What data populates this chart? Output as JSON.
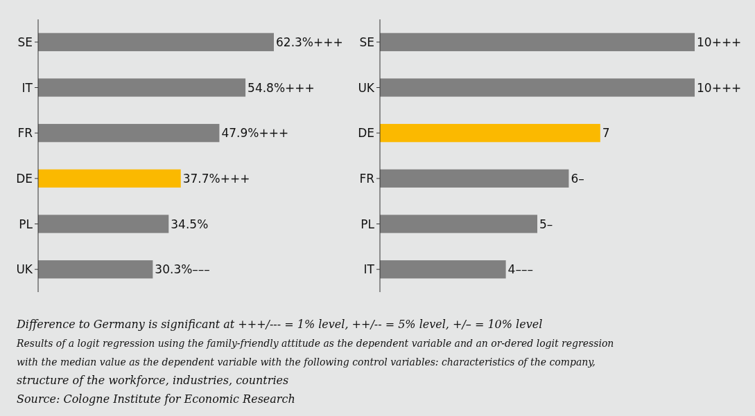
{
  "chart_data": [
    {
      "type": "bar",
      "orientation": "horizontal",
      "categories": [
        "SE",
        "IT",
        "FR",
        "DE",
        "PL",
        "UK"
      ],
      "values": [
        62.3,
        54.8,
        47.9,
        37.7,
        34.5,
        30.3
      ],
      "value_labels": [
        "62.3%+++",
        "54.8%+++",
        "47.9%+++",
        "37.7%+++",
        "34.5%",
        "30.3%–––"
      ],
      "colors": [
        "#808080",
        "#808080",
        "#808080",
        "#fbb900",
        "#808080",
        "#808080"
      ],
      "tick_labels": "y"
    },
    {
      "type": "bar",
      "orientation": "horizontal",
      "categories": [
        "SE",
        "UK",
        "DE",
        "FR",
        "PL",
        "IT"
      ],
      "values": [
        10,
        10,
        7,
        6,
        5,
        4
      ],
      "value_labels": [
        "10+++",
        "10+++",
        "7",
        "6–",
        "5–",
        "4–––"
      ],
      "colors": [
        "#808080",
        "#808080",
        "#fbb900",
        "#808080",
        "#808080",
        "#808080"
      ],
      "tick_labels": "y",
      "annotations": [
        "Difference to Germany is significant at +++/--- = 1% level, ++/-- = 5% level, +/– = 10% level",
        "Results of a logit regression using the family-friendly attitude as the dependent variable and an or-dered logit regression",
        "with the median value as the dependent variable with the following control variables: characteristics of the company,",
        "structure of the workforce, industries, countries",
        "Source: Cologne Institute for Economic Research"
      ]
    }
  ]
}
